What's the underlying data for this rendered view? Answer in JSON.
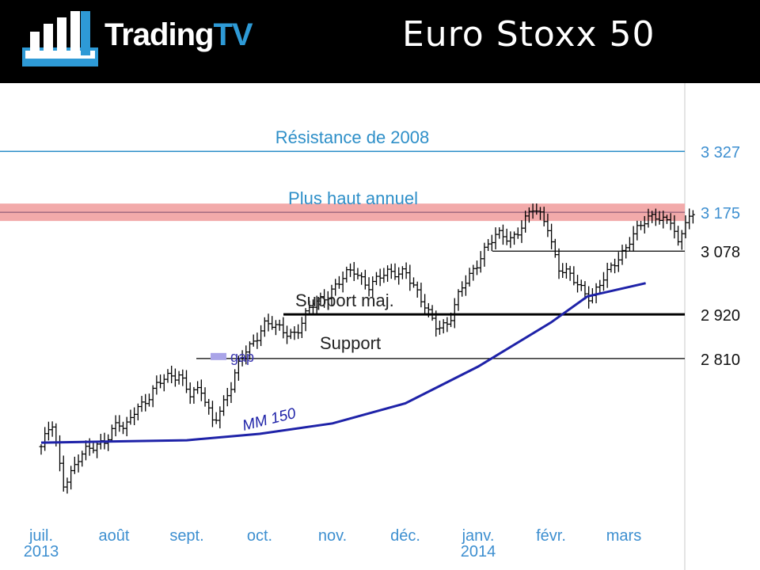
{
  "header": {
    "brand_main": "Trading",
    "brand_accent": "TV",
    "title": "Euro Stoxx 50"
  },
  "colors": {
    "header_bg": "#000000",
    "brand_accent": "#2e9ad6",
    "resistance": "#2e8fc8",
    "annual_high_band": "#f2aaaa",
    "ma": "#1e22a8",
    "price": "#000000",
    "axis_labels": "#3d8fd0"
  },
  "chart_data": {
    "type": "bar",
    "subtype": "ohlc",
    "x_labels": [
      {
        "label": "juil.",
        "year": "2013"
      },
      {
        "label": "août"
      },
      {
        "label": "sept."
      },
      {
        "label": "oct."
      },
      {
        "label": "nov."
      },
      {
        "label": "déc."
      },
      {
        "label": "janv.",
        "year": "2014"
      },
      {
        "label": "févr."
      },
      {
        "label": "mars"
      }
    ],
    "ylim": [
      2450,
      3450
    ],
    "y_axis_labels": [
      "3 327",
      "3 175",
      "3 078",
      "2 920",
      "2 810"
    ],
    "levels": [
      {
        "value": 3327,
        "label": "Résistance de 2008",
        "axis_label": "3 327",
        "style": "resistance"
      },
      {
        "value": 3175,
        "label": "Plus haut annuel",
        "axis_label": "3 175",
        "style": "band"
      },
      {
        "value": 3078,
        "label": "",
        "axis_label": "3 078",
        "style": "thin"
      },
      {
        "value": 2920,
        "label": "Support maj.",
        "axis_label": "2 920",
        "style": "thick"
      },
      {
        "value": 2810,
        "label": "Support",
        "axis_label": "2 810",
        "style": "thin"
      }
    ],
    "gap": {
      "label": "gap",
      "value": 2810
    },
    "moving_average": {
      "name": "MM 150",
      "points": [
        [
          0,
          2600
        ],
        [
          2,
          2606
        ],
        [
          3,
          2622
        ],
        [
          4,
          2648
        ],
        [
          5,
          2698
        ],
        [
          6,
          2790
        ],
        [
          7,
          2900
        ],
        [
          7.5,
          2965
        ],
        [
          8.3,
          2998
        ]
      ]
    },
    "price": [
      [
        0,
        2590
      ],
      [
        0.15,
        2640
      ],
      [
        0.3,
        2500
      ],
      [
        0.5,
        2560
      ],
      [
        0.7,
        2580
      ],
      [
        0.9,
        2620
      ],
      [
        1.05,
        2650
      ],
      [
        1.15,
        2620
      ],
      [
        1.3,
        2690
      ],
      [
        1.6,
        2740
      ],
      [
        1.9,
        2780
      ],
      [
        2.05,
        2720
      ],
      [
        2.2,
        2720
      ],
      [
        2.35,
        2660
      ],
      [
        2.6,
        2730
      ],
      [
        2.8,
        2830
      ],
      [
        3.05,
        2895
      ],
      [
        3.25,
        2880
      ],
      [
        3.5,
        2880
      ],
      [
        3.7,
        2930
      ],
      [
        4.0,
        2990
      ],
      [
        4.3,
        3025
      ],
      [
        4.5,
        3000
      ],
      [
        4.8,
        3018
      ],
      [
        5.0,
        3040
      ],
      [
        5.2,
        2950
      ],
      [
        5.4,
        2900
      ],
      [
        5.6,
        2900
      ],
      [
        5.8,
        2990
      ],
      [
        6.05,
        3078
      ],
      [
        6.25,
        3110
      ],
      [
        6.45,
        3115
      ],
      [
        6.75,
        3176
      ],
      [
        6.95,
        3150
      ],
      [
        7.1,
        3040
      ],
      [
        7.3,
        3000
      ],
      [
        7.55,
        2970
      ],
      [
        7.8,
        3020
      ],
      [
        8.1,
        3120
      ],
      [
        8.3,
        3145
      ],
      [
        8.45,
        3170
      ],
      [
        8.65,
        3160
      ],
      [
        8.75,
        3080
      ],
      [
        8.85,
        3150
      ],
      [
        8.95,
        3165
      ]
    ]
  }
}
